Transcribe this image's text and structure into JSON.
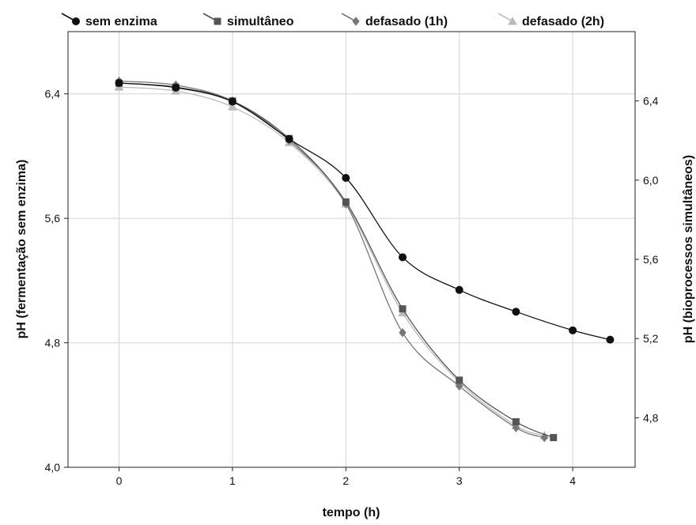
{
  "chart_data": {
    "type": "line",
    "title": "",
    "xlabel": "tempo (h)",
    "ylabel_left": "pH (fermentação sem enzima)",
    "ylabel_right": "pH (bioprocessos simultâneos)",
    "xlim": [
      -0.45,
      4.55
    ],
    "ylim_left": [
      4.0,
      6.8
    ],
    "ylim_right": [
      4.55,
      6.75
    ],
    "x_ticks": [
      "0",
      "1",
      "2",
      "3",
      "4"
    ],
    "y_left_ticks": [
      "4,0",
      "4,8",
      "5,6",
      "6,4"
    ],
    "y_right_ticks": [
      "4,8",
      "5,2",
      "5,6",
      "6,0",
      "6,4"
    ],
    "grid": true,
    "legend_position": "top",
    "series": [
      {
        "name": "sem enzima",
        "axis": "left",
        "marker": "circle",
        "color": "#111111",
        "x": [
          0,
          0.5,
          1,
          1.5,
          2,
          2.5,
          3,
          3.5,
          4,
          4.33
        ],
        "y": [
          6.47,
          6.44,
          6.35,
          6.11,
          5.86,
          5.35,
          5.14,
          5.0,
          4.88,
          4.82
        ]
      },
      {
        "name": "simultâneo",
        "axis": "right",
        "marker": "square",
        "color": "#555555",
        "x": [
          0,
          0.5,
          1,
          1.5,
          2,
          2.5,
          3,
          3.5,
          3.83
        ],
        "y": [
          6.49,
          6.47,
          6.4,
          6.21,
          5.89,
          5.35,
          4.99,
          4.78,
          4.7
        ]
      },
      {
        "name": "defasado (1h)",
        "axis": "right",
        "marker": "diamond",
        "color": "#777777",
        "x": [
          0,
          0.5,
          1,
          1.5,
          2,
          2.5,
          3,
          3.5,
          3.75
        ],
        "y": [
          6.5,
          6.48,
          6.4,
          6.2,
          5.88,
          5.23,
          4.96,
          4.75,
          4.7
        ]
      },
      {
        "name": "defasado (2h)",
        "axis": "right",
        "marker": "triangle",
        "color": "#bbbbbb",
        "x": [
          0,
          0.5,
          1,
          1.5,
          2,
          2.5,
          3,
          3.5,
          3.75
        ],
        "y": [
          6.47,
          6.45,
          6.37,
          6.19,
          5.88,
          5.33,
          4.98,
          4.76,
          4.71
        ]
      }
    ]
  }
}
